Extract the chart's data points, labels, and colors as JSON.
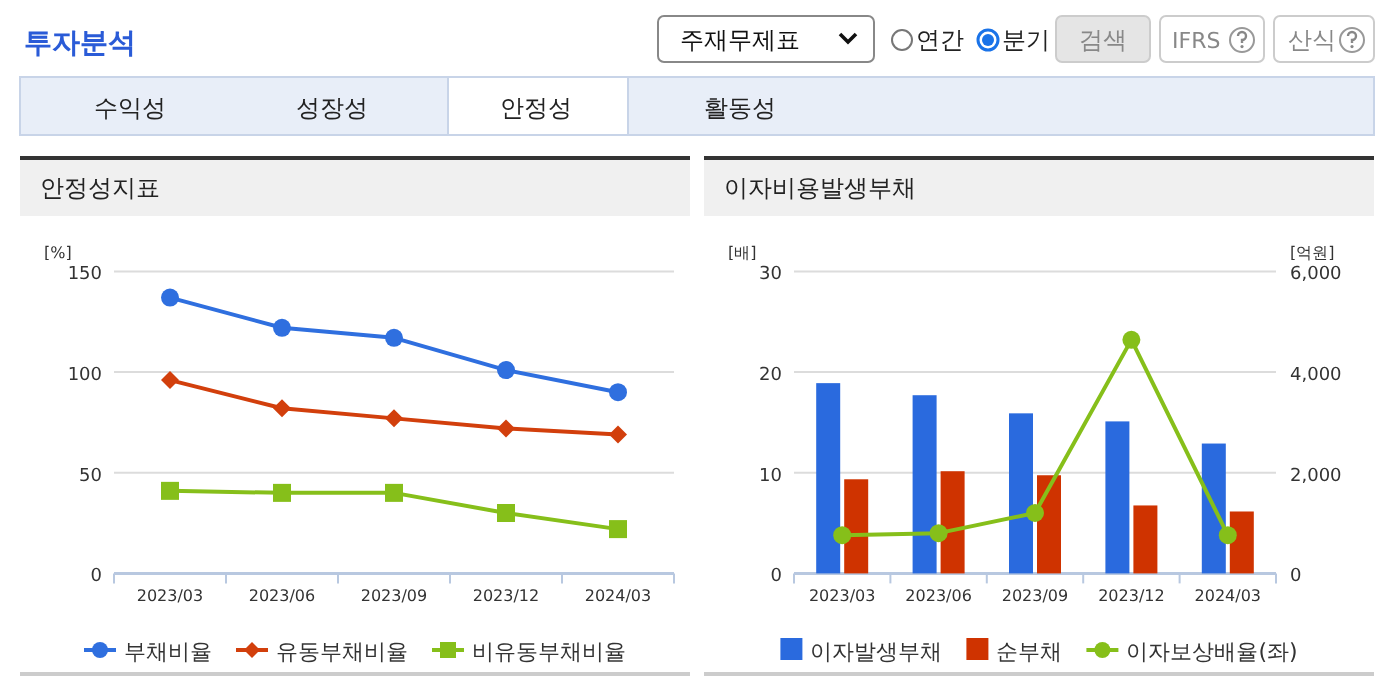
{
  "chart_data": [
    {
      "type": "other",
      "title": "투자분석",
      "annotations": [
        "주재무제표",
        "연간",
        "분기",
        "검색",
        "IFRS",
        "산식",
        "수익성",
        "성장성",
        "안정성",
        "활동성"
      ]
    },
    {
      "type": "line",
      "title": "안정성지표",
      "ylabel": "[%]",
      "categories": [
        "2023/03",
        "2023/06",
        "2023/09",
        "2023/12",
        "2024/03"
      ],
      "ylim": [
        0,
        150
      ],
      "yticks": [
        0,
        50,
        100,
        150
      ],
      "grid": "y",
      "legend": "bottom",
      "series": [
        {
          "name": "부채비율",
          "color": "#2f6fdf",
          "marker": "circle",
          "values": [
            137,
            122,
            117,
            101,
            90
          ]
        },
        {
          "name": "유동부채비율",
          "color": "#d23f0c",
          "marker": "diamond",
          "values": [
            96,
            82,
            77,
            72,
            69
          ]
        },
        {
          "name": "비유동부채비율",
          "color": "#86bf1a",
          "marker": "square",
          "values": [
            41,
            40,
            40,
            30,
            22
          ]
        }
      ]
    },
    {
      "type": "bar",
      "title": "이자비용발생부채",
      "ylabel": "[배]",
      "y2label": "[억원]",
      "categories": [
        "2023/03",
        "2023/06",
        "2023/09",
        "2023/12",
        "2024/03"
      ],
      "ylim": [
        0,
        30
      ],
      "yticks": [
        0,
        10,
        20,
        30
      ],
      "y2lim": [
        0,
        6000
      ],
      "y2ticks": [
        0,
        {
          "value": 2000,
          "label": "2,000"
        },
        {
          "value": 4000,
          "label": "4,000"
        },
        {
          "value": 6000,
          "label": "6,000"
        }
      ],
      "grid": "y",
      "legend": "bottom",
      "series": [
        {
          "name": "이자발생부채",
          "type": "bar",
          "axis": "y2",
          "color": "#2a6ade",
          "values": [
            3780,
            3540,
            3180,
            3020,
            2580
          ]
        },
        {
          "name": "순부채",
          "type": "bar",
          "axis": "y2",
          "color": "#cf3300",
          "values": [
            1870,
            2030,
            1950,
            1350,
            1230
          ]
        },
        {
          "name": "이자보상배율(좌)",
          "type": "line",
          "axis": "y",
          "color": "#86bf1a",
          "marker": "circle",
          "values": [
            3.8,
            4,
            6,
            23.2,
            3.8
          ]
        }
      ]
    }
  ]
}
